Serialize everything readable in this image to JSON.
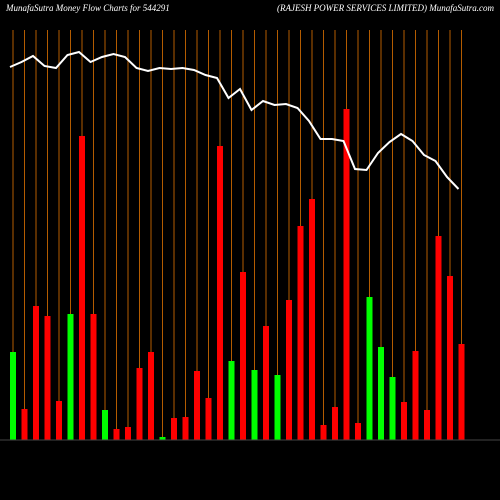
{
  "chart_data": {
    "type": "bar",
    "title": "MunafaSutra  Money Flow  Charts for 544291",
    "subtitle": "(RAJESH POWER SERVICES LIMITED) MunafaSutra.com",
    "values": [
      88,
      31,
      134,
      124,
      39,
      126,
      304,
      126,
      30,
      11,
      13,
      72,
      88,
      3,
      22,
      23,
      69,
      42,
      294,
      79,
      168,
      70,
      114,
      65,
      140,
      214,
      241,
      15,
      33,
      331,
      17,
      143,
      93,
      63,
      38,
      89,
      30,
      204,
      164,
      96
    ],
    "colors": [
      "#00ff00",
      "#ff0000",
      "#ff0000",
      "#ff0000",
      "#ff0000",
      "#00ff00",
      "#ff0000",
      "#ff0000",
      "#00ff00",
      "#ff0000",
      "#ff0000",
      "#ff0000",
      "#ff0000",
      "#00ff00",
      "#ff0000",
      "#ff0000",
      "#ff0000",
      "#ff0000",
      "#ff0000",
      "#00ff00",
      "#ff0000",
      "#00ff00",
      "#ff0000",
      "#00ff00",
      "#ff0000",
      "#ff0000",
      "#ff0000",
      "#ff0000",
      "#ff0000",
      "#ff0000",
      "#ff0000",
      "#00ff00",
      "#00ff00",
      "#00ff00",
      "#ff0000",
      "#ff0000",
      "#ff0000",
      "#ff0000",
      "#ff0000",
      "#ff0000"
    ],
    "line": {
      "color": "#ffffff",
      "values": [
        373,
        378,
        384,
        374,
        372,
        385,
        388,
        378,
        383,
        386,
        383,
        372,
        369,
        372,
        371,
        372,
        370,
        365,
        362,
        342,
        351,
        330,
        339,
        335,
        336,
        332,
        319,
        301,
        301,
        299,
        271,
        270,
        287,
        298,
        306,
        299,
        285,
        279,
        263,
        251
      ]
    },
    "ylim": [
      0,
      440
    ],
    "grid_color": "#b35c00"
  }
}
